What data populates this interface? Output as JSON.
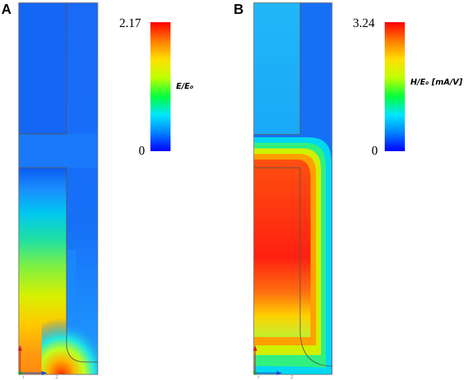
{
  "panel_a": {
    "letter": "A",
    "colorbar": {
      "max": "2.17",
      "min": "0",
      "label": "E/E₀"
    }
  },
  "panel_b": {
    "letter": "B",
    "colorbar": {
      "max": "3.24",
      "min": "0",
      "label": "H/E₀ [mA/V]"
    }
  },
  "colormap": [
    "#0000ff",
    "#0080ff",
    "#00e5ff",
    "#00ff40",
    "#c0ff00",
    "#ffe000",
    "#ff8000",
    "#ff0000"
  ],
  "axis_triad_labels": [
    "Y",
    "Z"
  ]
}
